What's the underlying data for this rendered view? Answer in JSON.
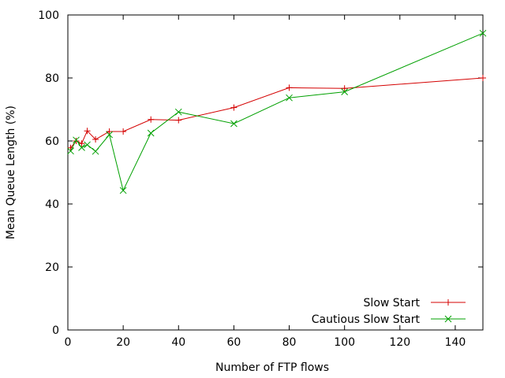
{
  "chart_data": {
    "type": "line",
    "title": "",
    "xlabel": "Number of FTP flows",
    "ylabel": "Mean Queue Length (%)",
    "xlim": [
      0,
      150
    ],
    "ylim": [
      0,
      100
    ],
    "x_ticks": [
      0,
      20,
      40,
      60,
      80,
      100,
      120,
      140
    ],
    "y_ticks": [
      0,
      20,
      40,
      60,
      80,
      100
    ],
    "grid": false,
    "legend_position": "bottom-right",
    "series": [
      {
        "name": "Slow Start",
        "color": "#d40000",
        "marker": "plus",
        "x": [
          1,
          3,
          5,
          7,
          10,
          15,
          20,
          30,
          40,
          60,
          80,
          100,
          150
        ],
        "y": [
          57.8,
          60.0,
          59.2,
          63.2,
          60.5,
          63.0,
          63.0,
          66.8,
          66.6,
          70.6,
          76.9,
          76.7,
          80.0
        ]
      },
      {
        "name": "Cautious Slow Start",
        "color": "#00a000",
        "marker": "x",
        "x": [
          1,
          3,
          5,
          7,
          10,
          15,
          20,
          30,
          40,
          60,
          80,
          100,
          150
        ],
        "y": [
          56.8,
          60.3,
          57.9,
          58.8,
          56.7,
          62.0,
          44.3,
          62.5,
          69.2,
          65.5,
          73.7,
          75.6,
          94.2
        ]
      }
    ]
  }
}
